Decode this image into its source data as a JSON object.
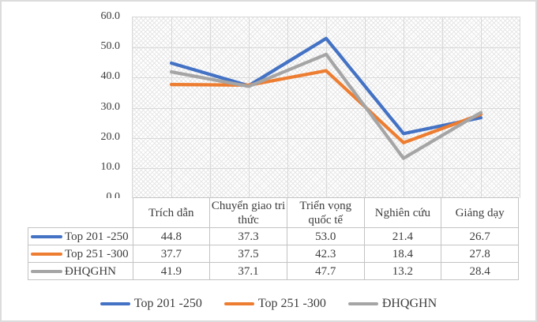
{
  "chart_data": {
    "type": "line",
    "title": "",
    "xlabel": "",
    "ylabel": "",
    "categories": [
      "Trích dẫn",
      "Chuyển giao tri thức",
      "Triển vọng quốc tế",
      "Nghiên cứu",
      "Giảng dạy"
    ],
    "series": [
      {
        "name": "Top 201 -250",
        "color": "#4472C4",
        "values": [
          44.8,
          37.3,
          53.0,
          21.4,
          26.7
        ]
      },
      {
        "name": "Top 251 -300",
        "color": "#ED7D31",
        "values": [
          37.7,
          37.5,
          42.3,
          18.4,
          27.8
        ]
      },
      {
        "name": "ĐHQGHN",
        "color": "#A5A5A5",
        "values": [
          41.9,
          37.1,
          47.7,
          13.2,
          28.4
        ]
      }
    ],
    "ylim": [
      0,
      60
    ],
    "y_tick_labels": [
      "60.0",
      "50.0",
      "40.0",
      "30.0",
      "20.0",
      "10.0",
      "0.0"
    ],
    "x_minor_divisions": 10,
    "grid": true,
    "plot_fill": "diagonal-crosshatch",
    "legend_position": "bottom",
    "data_table_shown": true
  },
  "colors": {
    "gridline": "#d9d9d9",
    "table_border": "#c3c3c3",
    "text": "#3d3d3d",
    "frame_border": "#dcdcdc"
  }
}
